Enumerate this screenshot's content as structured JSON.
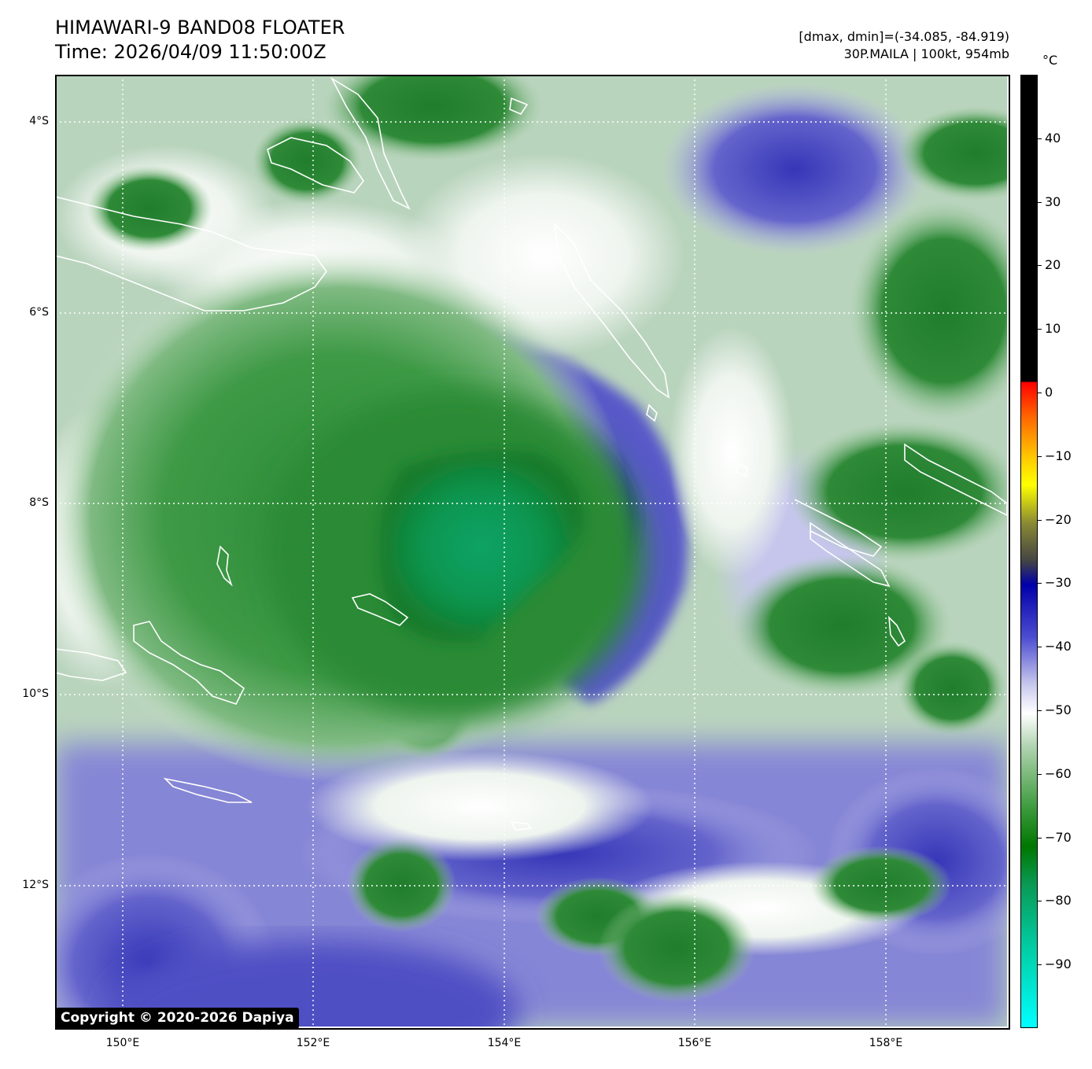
{
  "header": {
    "title": "HIMAWARI-9 BAND08 FLOATER",
    "time": "Time: 2026/04/09 11:50:00Z",
    "range_text": "[dmax, dmin]=(-34.085, -84.919)",
    "storm_text": "30P.MAILA | 100kt, 954mb"
  },
  "map": {
    "lat_labels": [
      "4°S",
      "6°S",
      "8°S",
      "10°S",
      "12°S"
    ],
    "lon_labels": [
      "150°E",
      "152°E",
      "154°E",
      "156°E",
      "158°E"
    ],
    "lat_range": [
      -13.5,
      -3.5
    ],
    "lon_range": [
      149.3,
      159.3
    ],
    "grid": "dotted white",
    "storm_center": {
      "lat": -8.0,
      "lon": 153.8
    },
    "islands": [
      {
        "name": "island-outline-new-britain-west"
      },
      {
        "name": "island-outline-new-ireland"
      },
      {
        "name": "island-outline-bougainville"
      },
      {
        "name": "island-outline-woodlark"
      },
      {
        "name": "island-outline-louisiade"
      },
      {
        "name": "island-outline-solomon-choiseul"
      },
      {
        "name": "island-outline-solomon-isabel"
      },
      {
        "name": "island-outline-trobriand"
      }
    ]
  },
  "colorbar": {
    "unit": "°C",
    "ticks": [
      "40",
      "30",
      "20",
      "10",
      "0",
      "−10",
      "−20",
      "−30",
      "−40",
      "−50",
      "−60",
      "−70",
      "−80",
      "−90"
    ],
    "tick_values": [
      40,
      30,
      20,
      10,
      0,
      -10,
      -20,
      -30,
      -40,
      -50,
      -60,
      -70,
      -80,
      -90
    ],
    "range": [
      -100,
      50
    ],
    "colors": [
      "#000000",
      "#ff0000",
      "#ffff00",
      "#0000aa",
      "#ffffff",
      "#007700",
      "#00ffff"
    ]
  },
  "copyright": "Copyright © 2020-2026 Dapiya"
}
